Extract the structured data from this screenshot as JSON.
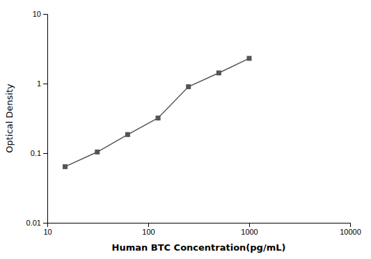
{
  "chart_data": {
    "type": "line",
    "xlabel": "Human BTC Concentration(pg/mL)",
    "ylabel": "Optical Density",
    "x": [
      15,
      31.25,
      62.5,
      125,
      250,
      500,
      1000
    ],
    "values": [
      0.064,
      0.104,
      0.185,
      0.32,
      0.9,
      1.42,
      2.3
    ],
    "color": "#555555",
    "marker": "square",
    "xlim": [
      10,
      10000
    ],
    "ylim": [
      0.01,
      10
    ],
    "xticks": [
      10,
      100,
      1000,
      10000
    ],
    "yticks": [
      0.01,
      0.1,
      1,
      10
    ],
    "log": true,
    "grid": false
  }
}
